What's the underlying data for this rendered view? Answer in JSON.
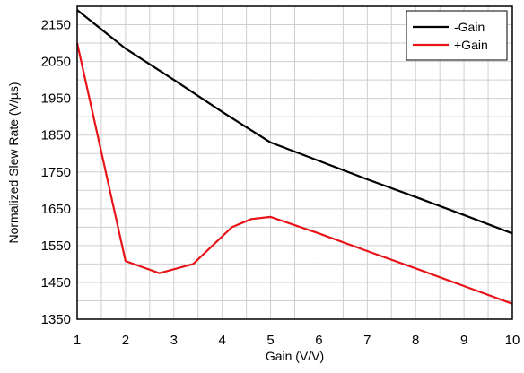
{
  "chart_data": {
    "type": "line",
    "xlabel": "Gain (V/V)",
    "ylabel": "Normalized Slew Rate (V/µs)",
    "xlim": [
      1,
      10
    ],
    "ylim": [
      1350,
      2200
    ],
    "x_ticks": [
      1,
      2,
      3,
      4,
      5,
      6,
      7,
      8,
      9,
      10
    ],
    "y_ticks": [
      1350,
      1450,
      1550,
      1650,
      1750,
      1850,
      1950,
      2050,
      2150
    ],
    "x_minor_step": 0.5,
    "y_minor_step": 50,
    "grid": true,
    "legend_position": "top-right",
    "series": [
      {
        "name": "-Gain",
        "color": "#000000",
        "x": [
          1,
          2,
          3,
          4,
          5,
          6,
          7,
          8,
          9,
          10
        ],
        "y": [
          2190,
          2085,
          2000,
          1913,
          1830,
          1780,
          1730,
          1682,
          1633,
          1583
        ]
      },
      {
        "name": "+Gain",
        "color": "#e8141a",
        "x": [
          1,
          2,
          2.7,
          3.4,
          4.2,
          4.6,
          5,
          6,
          7,
          8,
          9,
          10
        ],
        "y": [
          2100,
          1508,
          1475,
          1500,
          1600,
          1622,
          1628,
          1583,
          1535,
          1488,
          1440,
          1392
        ]
      }
    ]
  }
}
